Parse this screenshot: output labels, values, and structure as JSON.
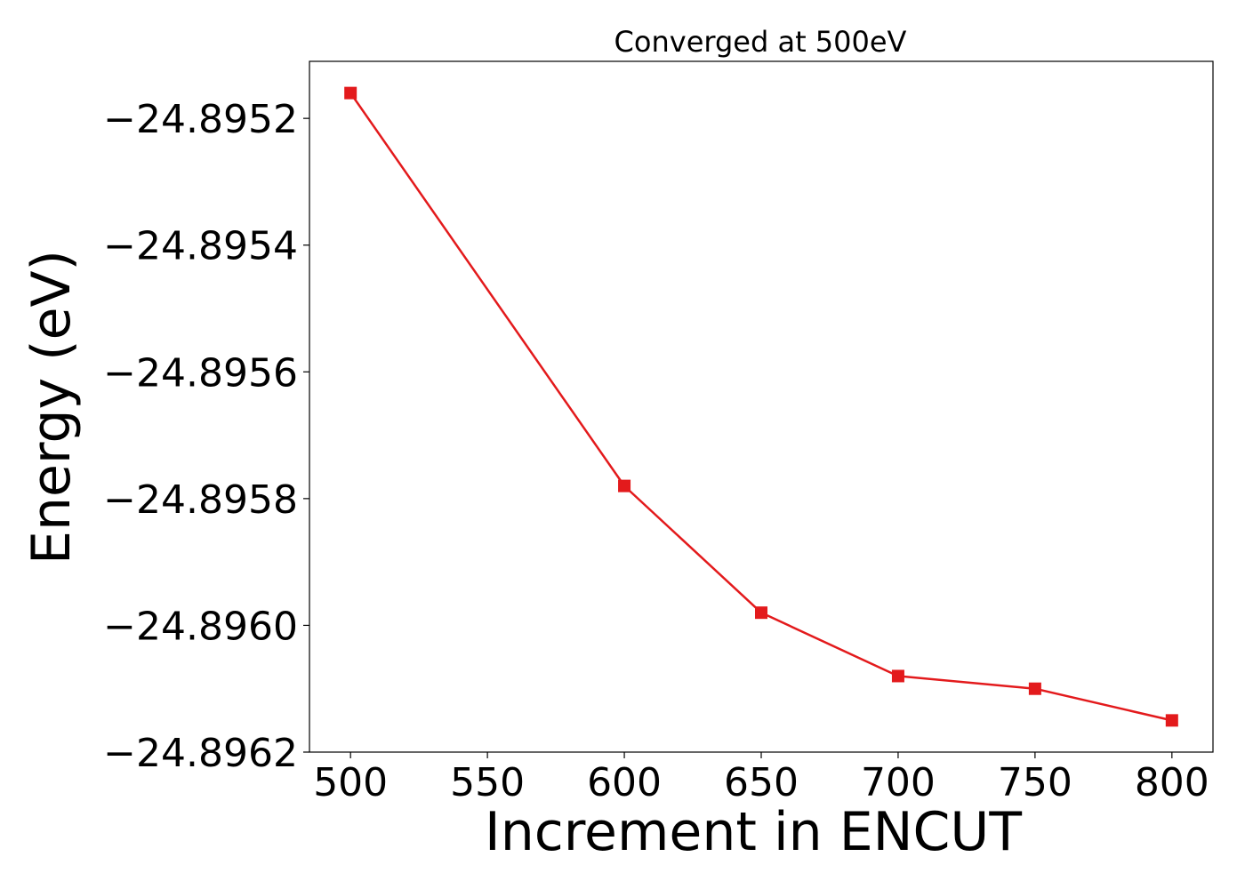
{
  "chart_data": {
    "type": "line",
    "title": "Converged at 500eV",
    "xlabel": "Increment in ENCUT",
    "ylabel": "Energy (eV)",
    "x": [
      500,
      600,
      650,
      700,
      750,
      800
    ],
    "series": [
      {
        "values": [
          -24.89516,
          -24.89578,
          -24.89598,
          -24.89608,
          -24.8961,
          -24.89615
        ],
        "color": "#e31a1c",
        "marker": "square"
      }
    ],
    "xlim": [
      485,
      815
    ],
    "ylim": [
      -24.8962,
      -24.89511
    ],
    "xticks": [
      500,
      550,
      600,
      650,
      700,
      750,
      800
    ],
    "xtick_labels": [
      "500",
      "550",
      "600",
      "650",
      "700",
      "750",
      "800"
    ],
    "yticks": [
      -24.8952,
      -24.8954,
      -24.8956,
      -24.8958,
      -24.896,
      -24.8962
    ],
    "ytick_labels": [
      "−24.8952",
      "−24.8954",
      "−24.8956",
      "−24.8958",
      "−24.8960",
      "−24.8962"
    ],
    "grid": false,
    "legend": "none"
  }
}
